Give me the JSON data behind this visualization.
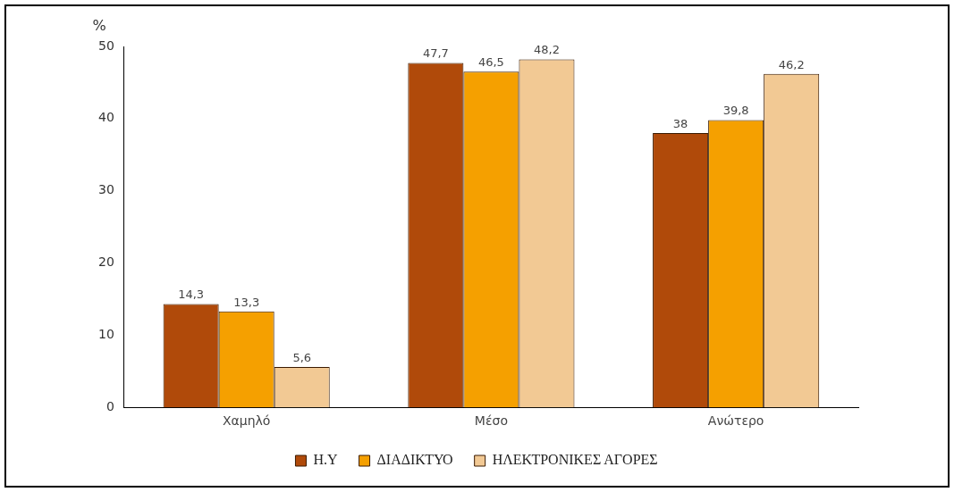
{
  "chart_data": {
    "type": "bar",
    "ylabel": "%",
    "categories": [
      "Χαμηλό",
      "Μέσο",
      "Ανώτερο"
    ],
    "series": [
      {
        "name": "Η.Υ",
        "color": "#b04a0a",
        "values": [
          14.3,
          47.7,
          38
        ],
        "value_labels": [
          "14,3",
          "47,7",
          "38"
        ]
      },
      {
        "name": "ΔΙΑΔΙΚΤΥΟ",
        "color": "#f5a000",
        "values": [
          13.3,
          46.5,
          39.8
        ],
        "value_labels": [
          "13,3",
          "46,5",
          "39,8"
        ]
      },
      {
        "name": "ΗΛΕΚΤΡΟΝΙΚΕΣ ΑΓΟΡΕΣ",
        "color": "#f2c994",
        "values": [
          5.6,
          48.2,
          46.2
        ],
        "value_labels": [
          "5,6",
          "48,2",
          "46,2"
        ]
      }
    ],
    "ylim": [
      0,
      50
    ],
    "yticks": [
      0,
      10,
      20,
      30,
      40,
      50
    ],
    "grid": false,
    "legend": "bottom"
  }
}
